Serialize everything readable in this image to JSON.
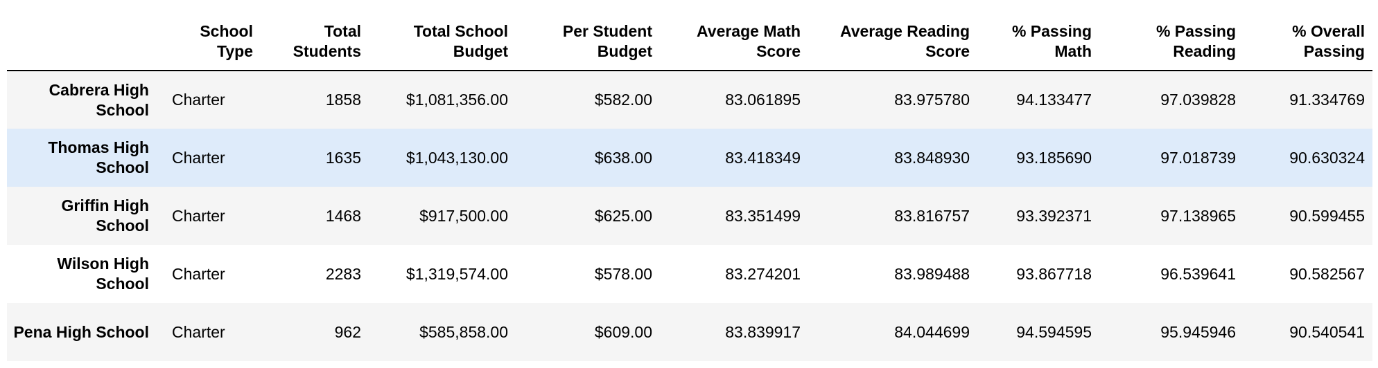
{
  "table": {
    "headers": [
      "",
      "School Type",
      "Total Students",
      "Total School Budget",
      "Per Student Budget",
      "Average Math Score",
      "Average Reading Score",
      "% Passing Math",
      "% Passing Reading",
      "% Overall Passing"
    ],
    "rows": [
      {
        "index": "Cabrera High School",
        "cells": [
          "Charter",
          "1858",
          "$1,081,356.00",
          "$582.00",
          "83.061895",
          "83.975780",
          "94.133477",
          "97.039828",
          "91.334769"
        ]
      },
      {
        "index": "Thomas High School",
        "cells": [
          "Charter",
          "1635",
          "$1,043,130.00",
          "$638.00",
          "83.418349",
          "83.848930",
          "93.185690",
          "97.018739",
          "90.630324"
        ]
      },
      {
        "index": "Griffin High School",
        "cells": [
          "Charter",
          "1468",
          "$917,500.00",
          "$625.00",
          "83.351499",
          "83.816757",
          "93.392371",
          "97.138965",
          "90.599455"
        ]
      },
      {
        "index": "Wilson High School",
        "cells": [
          "Charter",
          "2283",
          "$1,319,574.00",
          "$578.00",
          "83.274201",
          "83.989488",
          "93.867718",
          "96.539641",
          "90.582567"
        ]
      },
      {
        "index": "Pena High School",
        "cells": [
          "Charter",
          "962",
          "$585,858.00",
          "$609.00",
          "83.839917",
          "84.044699",
          "94.594595",
          "95.945946",
          "90.540541"
        ]
      }
    ]
  }
}
